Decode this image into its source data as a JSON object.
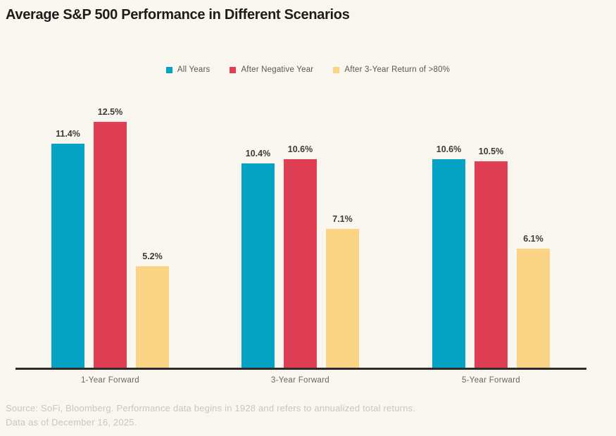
{
  "chart_data": {
    "type": "bar",
    "title": "Average S&P 500 Performance in Different Scenarios",
    "categories": [
      "1-Year Forward",
      "3-Year Forward",
      "5-Year Forward"
    ],
    "series": [
      {
        "name": "All Years",
        "color": "#04A2C4",
        "values": [
          11.4,
          10.4,
          10.6
        ],
        "labels": [
          "11.4%",
          "10.4%",
          "10.6%"
        ]
      },
      {
        "name": "After Negative Year",
        "color": "#DF3E54",
        "values": [
          12.5,
          10.6,
          10.5
        ],
        "labels": [
          "12.5%",
          "10.6%",
          "10.5%"
        ]
      },
      {
        "name": "After 3-Year Return of >80%",
        "color": "#FAD484",
        "values": [
          5.2,
          7.1,
          6.1
        ],
        "labels": [
          "5.2%",
          "7.1%",
          "6.1%"
        ]
      }
    ],
    "unit": "%",
    "ylim": [
      0,
      13.5
    ],
    "grid": false,
    "legend_position": "top-center",
    "y_axis_visible": false,
    "x_axis_line_color": "#2D2B28"
  },
  "footer": {
    "line1": "Source: SoFi, Bloomberg. Performance data begins in 1928 and refers to annualized total returns.",
    "line2": "Data as of December 16, 2025."
  }
}
